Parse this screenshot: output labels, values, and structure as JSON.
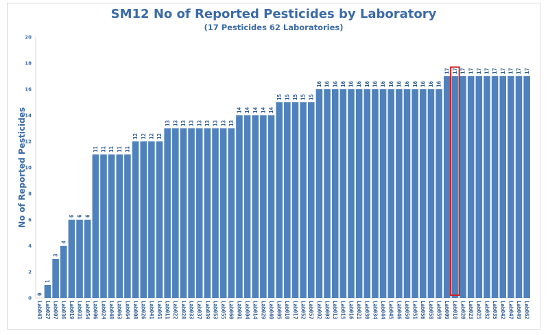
{
  "chart_data": {
    "type": "bar",
    "title": "SM12 No of Reported Pesticides by Laboratory",
    "subtitle": "(17 Pesticides 62 Laboratories)",
    "xlabel": "",
    "ylabel": "No of Reported Pesticides",
    "ylim": [
      0,
      20
    ],
    "yticks": [
      0,
      2,
      4,
      6,
      8,
      10,
      12,
      14,
      16,
      18,
      20
    ],
    "grid": false,
    "legend": "none",
    "highlight_category": "Lab018",
    "categories": [
      "Lab043",
      "Lab027",
      "Lab007",
      "Lab036",
      "Lab019",
      "Lab031",
      "Lab054",
      "Lab006",
      "Lab024",
      "Lab048",
      "Lab063",
      "Lab064",
      "Lab008",
      "Lab026",
      "Lab041",
      "Lab061",
      "Lab011",
      "Lab022",
      "Lab028",
      "Lab033",
      "Lab037",
      "Lab039",
      "Lab053",
      "Lab055",
      "Lab060",
      "Lab001",
      "Lab004",
      "Lab014",
      "Lab029",
      "Lab040",
      "Lab005",
      "Lab010",
      "Lab017",
      "Lab052",
      "Lab057",
      "Lab002",
      "Lab003",
      "Lab013",
      "Lab015",
      "Lab016",
      "Lab021",
      "Lab030",
      "Lab034",
      "Lab044",
      "Lab045",
      "Lab046",
      "Lab050",
      "Lab051",
      "Lab056",
      "Lab058",
      "Lab059",
      "Lab009",
      "Lab018",
      "Lab020",
      "Lab023",
      "Lab025",
      "Lab032",
      "Lab035",
      "Lab042",
      "Lab047",
      "Lab049",
      "Lab062"
    ],
    "values": [
      0,
      1,
      3,
      4,
      6,
      6,
      6,
      11,
      11,
      11,
      11,
      11,
      12,
      12,
      12,
      12,
      13,
      13,
      13,
      13,
      13,
      13,
      13,
      13,
      13,
      14,
      14,
      14,
      14,
      14,
      15,
      15,
      15,
      15,
      15,
      16,
      16,
      16,
      16,
      16,
      16,
      16,
      16,
      16,
      16,
      16,
      16,
      16,
      16,
      16,
      16,
      17,
      17,
      17,
      17,
      17,
      17,
      17,
      17,
      17,
      17,
      17
    ],
    "colors": {
      "bar": "#4f81bd",
      "text": "#2e5c96",
      "highlight": "#d42020"
    }
  }
}
